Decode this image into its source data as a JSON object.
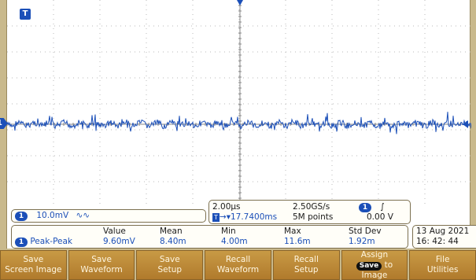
{
  "colors": {
    "trace": "#1b4fb8",
    "accent": "#1b4fb8",
    "menu_bg": "#b98432",
    "bezel": "#c9b98c"
  },
  "markers": {
    "trigger_top": "T",
    "channel": "1"
  },
  "channel_scale": {
    "channel": "1",
    "value": "10.0mV",
    "bandwidth_icon": "∿∿"
  },
  "timebase": {
    "horizontal_scale": "2.00µs",
    "sample_rate": "2.50GS/s",
    "trigger_channel": "1",
    "trigger_slope_icon": "rising-edge-icon",
    "trigger_slope_glyph": "∫",
    "position_badge": "T",
    "position_arrow": "→▾",
    "position": "17.7400ms",
    "record_length": "5M points",
    "trigger_level": "0.00 V"
  },
  "measurement": {
    "headers": [
      "Value",
      "Mean",
      "Min",
      "Max",
      "Std Dev"
    ],
    "channel": "1",
    "name": "Peak-Peak",
    "values": [
      "9.60mV",
      "8.40m",
      "4.00m",
      "11.6m",
      "1.92m"
    ]
  },
  "datetime": {
    "date": "13 Aug   2021",
    "time": "16: 42: 44"
  },
  "menu": {
    "save_screen_image": [
      "Save",
      "Screen Image"
    ],
    "save_waveform": [
      "Save",
      "Waveform"
    ],
    "save_setup": [
      "Save",
      "Setup"
    ],
    "recall_waveform": [
      "Recall",
      "Waveform"
    ],
    "recall_setup": [
      "Recall",
      "Setup"
    ],
    "assign": [
      "Assign",
      "Save",
      "to",
      "Image"
    ],
    "file_utilities": [
      "File",
      "Utilities"
    ]
  }
}
